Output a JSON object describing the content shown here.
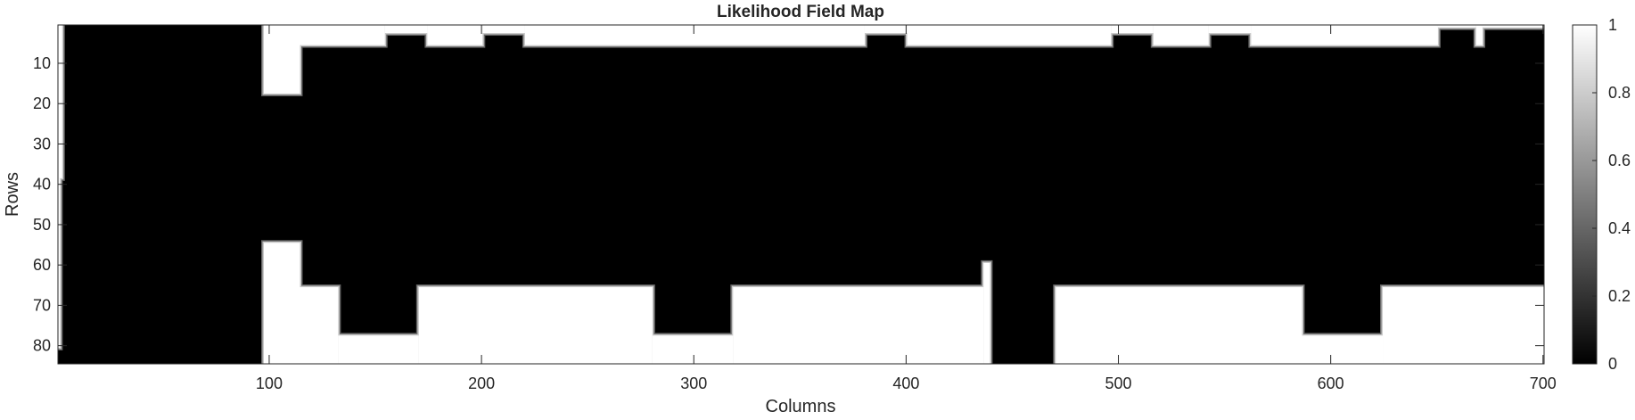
{
  "chart_data": {
    "type": "heatmap",
    "title": "Likelihood Field Map",
    "xlabel": "Columns",
    "ylabel": "Rows",
    "xlim": [
      0.5,
      700.5
    ],
    "ylim": [
      0.5,
      84.5
    ],
    "y_direction": "reverse",
    "x_ticks": [
      100,
      200,
      300,
      400,
      500,
      600,
      700
    ],
    "y_ticks": [
      10,
      20,
      30,
      40,
      50,
      60,
      70,
      80
    ],
    "colormap": "gray",
    "color_range": [
      0,
      1
    ],
    "colorbar_ticks": [
      0,
      0.2,
      0.4,
      0.6,
      0.8,
      1
    ],
    "colorbar_labels": [
      "0",
      "0.2",
      "0.4",
      "0.6",
      "0.8",
      "1"
    ],
    "colors": {
      "low": "#000000",
      "high": "#ffffff",
      "edge_dark": "#666666",
      "edge_light": "#c8c8c8",
      "axis": "#262626"
    },
    "regions_value_1": [
      {
        "cols": [
          0,
          2
        ],
        "rows": [
          0,
          38
        ]
      },
      {
        "cols": [
          0,
          1
        ],
        "rows": [
          38,
          80
        ]
      },
      {
        "cols": [
          97,
          114
        ],
        "rows": [
          0,
          17
        ]
      },
      {
        "cols": [
          114,
          154
        ],
        "rows": [
          0,
          5
        ]
      },
      {
        "cols": [
          154,
          174
        ],
        "rows": [
          0,
          2
        ]
      },
      {
        "cols": [
          174,
          200
        ],
        "rows": [
          0,
          5
        ]
      },
      {
        "cols": [
          200,
          220
        ],
        "rows": [
          0,
          2
        ]
      },
      {
        "cols": [
          220,
          380
        ],
        "rows": [
          0,
          5
        ]
      },
      {
        "cols": [
          380,
          400
        ],
        "rows": [
          0,
          2
        ]
      },
      {
        "cols": [
          400,
          496
        ],
        "rows": [
          0,
          5
        ]
      },
      {
        "cols": [
          496,
          516
        ],
        "rows": [
          0,
          2
        ]
      },
      {
        "cols": [
          516,
          542
        ],
        "rows": [
          0,
          5
        ]
      },
      {
        "cols": [
          542,
          562
        ],
        "rows": [
          0,
          2
        ]
      },
      {
        "cols": [
          562,
          650
        ],
        "rows": [
          0,
          5
        ]
      },
      {
        "cols": [
          650,
          668
        ],
        "rows": [
          0,
          0.6
        ]
      },
      {
        "cols": [
          668,
          671
        ],
        "rows": [
          0,
          5
        ]
      },
      {
        "cols": [
          671,
          700
        ],
        "rows": [
          0,
          0.6
        ]
      },
      {
        "cols": [
          97,
          114
        ],
        "rows": [
          54,
          84
        ]
      },
      {
        "cols": [
          114,
          132
        ],
        "rows": [
          65,
          84
        ]
      },
      {
        "cols": [
          132,
          170
        ],
        "rows": [
          77,
          84
        ]
      },
      {
        "cols": [
          170,
          280
        ],
        "rows": [
          65,
          84
        ]
      },
      {
        "cols": [
          280,
          318
        ],
        "rows": [
          77,
          84
        ]
      },
      {
        "cols": [
          318,
          436
        ],
        "rows": [
          65,
          84
        ]
      },
      {
        "cols": [
          436,
          439
        ],
        "rows": [
          59,
          84
        ]
      },
      {
        "cols": [
          470,
          586
        ],
        "rows": [
          65,
          84
        ]
      },
      {
        "cols": [
          586,
          624
        ],
        "rows": [
          77,
          84
        ]
      },
      {
        "cols": [
          624,
          700
        ],
        "rows": [
          65,
          84
        ]
      }
    ]
  }
}
